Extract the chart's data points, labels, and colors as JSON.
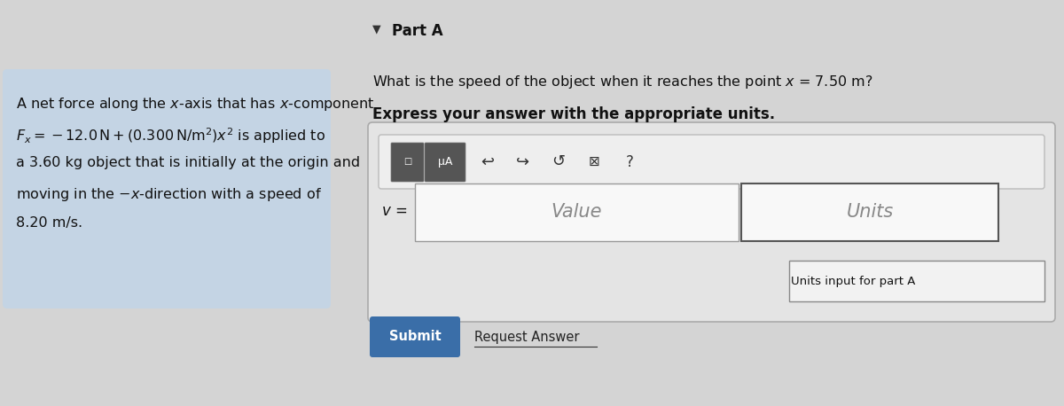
{
  "bg_color": "#d4d4d4",
  "left_panel_bg": "#c4d4e4",
  "left_text_line1": "A net force along the $x$-axis that has $x$-component",
  "left_text_line2": "$F_x = -12.0\\,\\mathrm{N} + (0.300\\,\\mathrm{N/m^2})x^2$ is applied to",
  "left_text_line3": "a 3.60 kg object that is initially at the origin and",
  "left_text_line4": "moving in the $-x$-direction with a speed of",
  "left_text_line5": "8.20 m/s.",
  "part_a_label": "Part A",
  "triangle_marker": "▼",
  "question_line1": "What is the speed of the object when it reaches the point $x$ = 7.50 m?",
  "question_line2": "Express your answer with the appropriate units.",
  "v_label": "$v$ =",
  "value_placeholder": "Value",
  "units_placeholder": "Units",
  "units_tooltip": "Units input for part A",
  "submit_label": "Submit",
  "request_answer_label": "Request Answer",
  "font_size_main": 11.5,
  "submit_bg": "#3a6ea8",
  "submit_fg": "#ffffff"
}
